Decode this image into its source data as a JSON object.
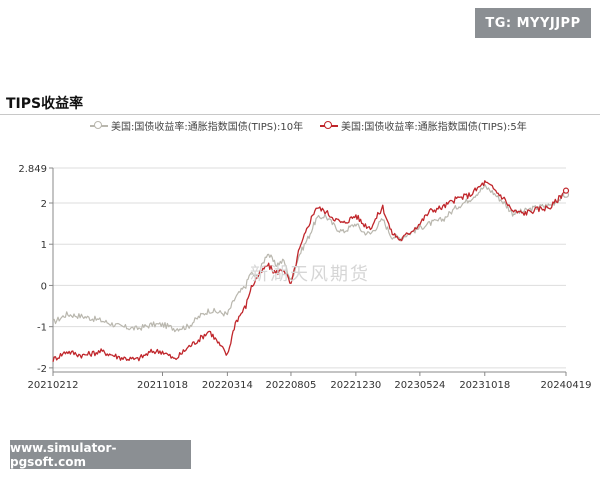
{
  "badge_tg": "TG: MYYJJPP",
  "badge_site": "www.simulator-pgsoft.com",
  "watermark": "新湖天风期货",
  "colors": {
    "series_10y": "#b9b7ae",
    "series_5y": "#c0262b",
    "grid": "#dddddd",
    "axis": "#888888"
  },
  "chart_data": {
    "type": "line",
    "title": "TIPS收益率",
    "ylim": [
      -2.1,
      2.849
    ],
    "y_ticks": [
      -2,
      -1,
      0,
      1,
      2,
      2.849
    ],
    "y_tick_labels": [
      "-2",
      "-1",
      "0",
      "1",
      "2",
      "2.849"
    ],
    "x_tick_labels": [
      "20210212",
      "20211018",
      "20220314",
      "20220805",
      "20221230",
      "20230524",
      "20231018",
      "20240419"
    ],
    "grid": "horizontal",
    "legend_position": "top",
    "series": [
      {
        "name": "美国:国债收益率:通胀指数国债(TIPS):10年",
        "points": [
          [
            "20210212",
            -0.9
          ],
          [
            "20210315",
            -0.7
          ],
          [
            "20210420",
            -0.75
          ],
          [
            "20210601",
            -0.85
          ],
          [
            "20210715",
            -1.0
          ],
          [
            "20210820",
            -1.05
          ],
          [
            "20210925",
            -0.95
          ],
          [
            "20211018",
            -0.95
          ],
          [
            "20211115",
            -1.05
          ],
          [
            "20211215",
            -1.0
          ],
          [
            "20220110",
            -0.75
          ],
          [
            "20220201",
            -0.6
          ],
          [
            "20220314",
            -0.7
          ],
          [
            "20220401",
            -0.3
          ],
          [
            "20220425",
            0.0
          ],
          [
            "20220505",
            0.3
          ],
          [
            "20220520",
            0.2
          ],
          [
            "20220613",
            0.8
          ],
          [
            "20220701",
            0.5
          ],
          [
            "20220720",
            0.6
          ],
          [
            "20220805",
            0.1
          ],
          [
            "20220822",
            0.7
          ],
          [
            "20220915",
            1.2
          ],
          [
            "20221001",
            1.6
          ],
          [
            "20221021",
            1.7
          ],
          [
            "20221115",
            1.4
          ],
          [
            "20221201",
            1.3
          ],
          [
            "20221230",
            1.5
          ],
          [
            "20230115",
            1.3
          ],
          [
            "20230201",
            1.25
          ],
          [
            "20230301",
            1.6
          ],
          [
            "20230320",
            1.2
          ],
          [
            "20230410",
            1.15
          ],
          [
            "20230524",
            1.4
          ],
          [
            "20230615",
            1.5
          ],
          [
            "20230715",
            1.6
          ],
          [
            "20230815",
            1.9
          ],
          [
            "20230915",
            2.1
          ],
          [
            "20231018",
            2.4
          ],
          [
            "20231101",
            2.3
          ],
          [
            "20231201",
            2.0
          ],
          [
            "20231220",
            1.75
          ],
          [
            "20240115",
            1.8
          ],
          [
            "20240215",
            1.9
          ],
          [
            "20240315",
            1.95
          ],
          [
            "20240419",
            2.2
          ]
        ]
      },
      {
        "name": "美国:国债收益率:通胀指数国债(TIPS):5年",
        "points": [
          [
            "20210212",
            -1.8
          ],
          [
            "20210315",
            -1.6
          ],
          [
            "20210420",
            -1.7
          ],
          [
            "20210601",
            -1.6
          ],
          [
            "20210715",
            -1.75
          ],
          [
            "20210820",
            -1.8
          ],
          [
            "20210925",
            -1.6
          ],
          [
            "20211018",
            -1.6
          ],
          [
            "20211115",
            -1.8
          ],
          [
            "20211215",
            -1.5
          ],
          [
            "20220110",
            -1.3
          ],
          [
            "20220201",
            -1.1
          ],
          [
            "20220314",
            -1.7
          ],
          [
            "20220401",
            -0.9
          ],
          [
            "20220425",
            -0.5
          ],
          [
            "20220505",
            -0.1
          ],
          [
            "20220520",
            0.2
          ],
          [
            "20220613",
            0.5
          ],
          [
            "20220701",
            0.3
          ],
          [
            "20220720",
            0.4
          ],
          [
            "20220805",
            0.0
          ],
          [
            "20220822",
            0.8
          ],
          [
            "20220915",
            1.5
          ],
          [
            "20221001",
            1.9
          ],
          [
            "20221021",
            1.8
          ],
          [
            "20221115",
            1.6
          ],
          [
            "20221201",
            1.5
          ],
          [
            "20221230",
            1.7
          ],
          [
            "20230115",
            1.5
          ],
          [
            "20230201",
            1.4
          ],
          [
            "20230301",
            1.9
          ],
          [
            "20230320",
            1.3
          ],
          [
            "20230410",
            1.1
          ],
          [
            "20230524",
            1.5
          ],
          [
            "20230615",
            1.8
          ],
          [
            "20230715",
            1.9
          ],
          [
            "20230815",
            2.1
          ],
          [
            "20230915",
            2.2
          ],
          [
            "20231018",
            2.5
          ],
          [
            "20231101",
            2.4
          ],
          [
            "20231201",
            2.1
          ],
          [
            "20231220",
            1.8
          ],
          [
            "20240115",
            1.75
          ],
          [
            "20240215",
            1.85
          ],
          [
            "20240315",
            1.9
          ],
          [
            "20240419",
            2.3
          ]
        ]
      }
    ]
  }
}
